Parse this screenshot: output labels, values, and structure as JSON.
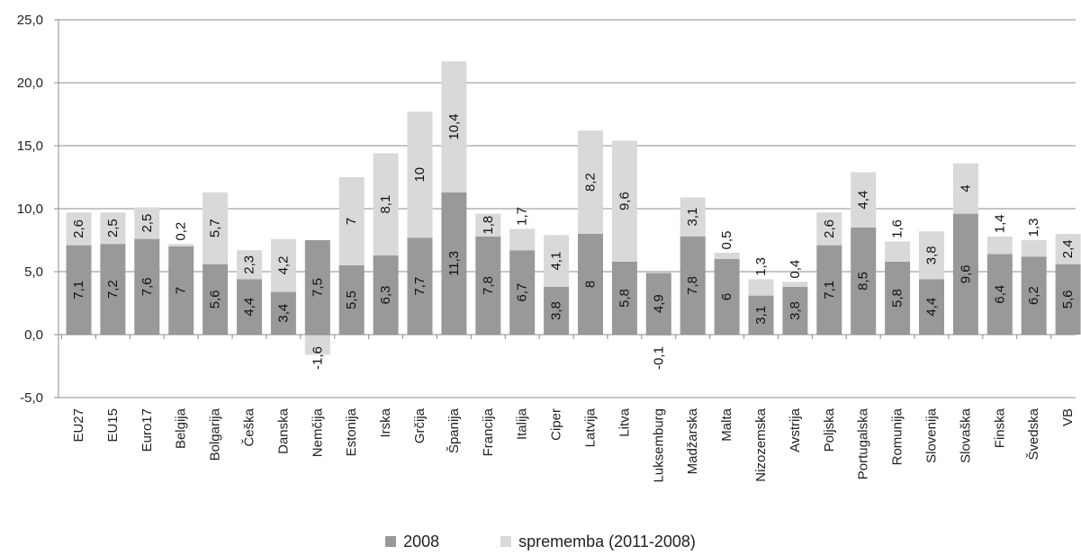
{
  "chart_data": {
    "type": "bar",
    "stacked": true,
    "orientation": "vertical",
    "categories": [
      "EU27",
      "EU15",
      "Euro17",
      "Belgija",
      "Bolgarija",
      "Češka",
      "Danska",
      "Nemčija",
      "Estonija",
      "Irska",
      "Grčija",
      "Španija",
      "Francija",
      "Italija",
      "Ciper",
      "Latvija",
      "Litva",
      "Luksemburg",
      "Madžarska",
      "Malta",
      "Nizozemska",
      "Avstrija",
      "Poljska",
      "Portugalska",
      "Romunija",
      "Slovenija",
      "Slovaška",
      "Finska",
      "Švedska",
      "VB"
    ],
    "series": [
      {
        "name": "2008",
        "color": "#999999",
        "values": [
          7.1,
          7.2,
          7.6,
          7,
          5.6,
          4.4,
          3.4,
          7.5,
          5.5,
          6.3,
          7.7,
          11.3,
          7.8,
          6.7,
          3.8,
          8,
          5.8,
          4.9,
          7.8,
          6,
          3.1,
          3.8,
          7.1,
          8.5,
          5.8,
          4.4,
          9.6,
          6.4,
          6.2,
          5.6
        ],
        "labels": [
          "7,1",
          "7,2",
          "7,6",
          "7",
          "5,6",
          "4,4",
          "3,4",
          "7,5",
          "5,5",
          "6,3",
          "7,7",
          "11,3",
          "7,8",
          "6,7",
          "3,8",
          "8",
          "5,8",
          "4,9",
          "7,8",
          "6",
          "3,1",
          "3,8",
          "7,1",
          "8,5",
          "5,8",
          "4,4",
          "9,6",
          "6,4",
          "6,2",
          "5,6"
        ]
      },
      {
        "name": "sprememba (2011-2008)",
        "color": "#d9d9d9",
        "values": [
          2.6,
          2.5,
          2.5,
          0.2,
          5.7,
          2.3,
          4.2,
          -1.6,
          7,
          8.1,
          10,
          10.4,
          1.8,
          1.7,
          4.1,
          8.2,
          9.6,
          -0.1,
          3.1,
          0.5,
          1.3,
          0.4,
          2.6,
          4.4,
          1.6,
          3.8,
          4,
          1.4,
          1.3,
          2.4
        ],
        "labels": [
          "2,6",
          "2,5",
          "2,5",
          "0,2",
          "5,7",
          "2,3",
          "4,2",
          "-1,6",
          "7",
          "8,1",
          "10",
          "10,4",
          "1,8",
          "1,7",
          "4,1",
          "8,2",
          "9,6",
          "-0,1",
          "3,1",
          "0,5",
          "1,3",
          "0,4",
          "2,6",
          "4,4",
          "1,6",
          "3,8",
          "4",
          "1,4",
          "1,3",
          "2,4"
        ]
      }
    ],
    "yticks": [
      "25,0",
      "20,0",
      "15,0",
      "10,0",
      "5,0",
      "0,0",
      "-5,0"
    ],
    "ylim": [
      -5,
      25
    ],
    "grid": true,
    "legend_position": "bottom"
  }
}
